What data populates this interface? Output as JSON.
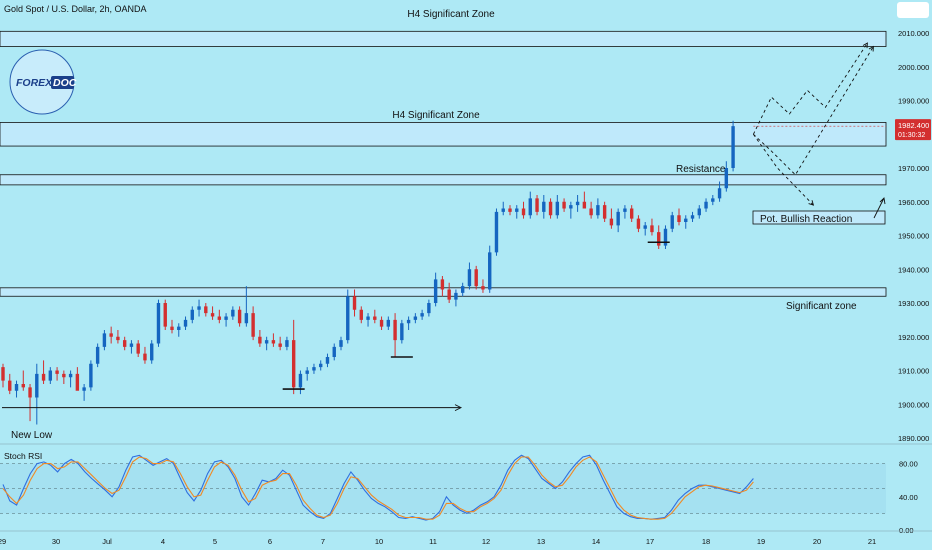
{
  "header": {
    "symbol_title": "Gold Spot / U.S. Dollar, 2h, OANDA"
  },
  "logo": {
    "text_a": "FOREX",
    "text_b": "DOC"
  },
  "colors": {
    "background": "#aee9f5",
    "bull": "#1565c0",
    "bear": "#d32f2f",
    "zone_fill": "#bfe9fb",
    "line": "#111111",
    "rsi_k": "#2f6fe0",
    "rsi_d": "#f08a24",
    "price_tag": "#d32f2f"
  },
  "annotations": {
    "h4_top": "H4 Significant Zone",
    "h4_mid": "H4 Significant Zone",
    "resistance": "Resistance",
    "bullish": "Pot. Bullish Reaction",
    "significant": "Significant zone",
    "new_low": "New Low"
  },
  "price_tag": {
    "price": "1982.400",
    "time": "01:30:32"
  },
  "chart_data": [
    {
      "type": "candlestick",
      "title": "Gold Spot / U.S. Dollar, 2h, OANDA",
      "y_ticks": [
        "2010.000",
        "2000.000",
        "1990.000",
        "1980.000",
        "1970.000",
        "1960.000",
        "1950.000",
        "1940.000",
        "1930.000",
        "1920.000",
        "1910.000",
        "1900.000",
        "1890.000"
      ],
      "ylim": [
        1890,
        2010
      ],
      "x_ticks": [
        "29",
        "30",
        "Jul",
        "4",
        "5",
        "6",
        "7",
        "10",
        "11",
        "12",
        "13",
        "14",
        "17",
        "18",
        "19",
        "20",
        "21"
      ],
      "last_price": 1982.4,
      "zones": [
        {
          "label": "H4 Significant Zone",
          "low": 2006,
          "high": 2010.5
        },
        {
          "label": "H4 Significant Zone",
          "low": 1976.5,
          "high": 1983.5
        },
        {
          "label": "Resistance",
          "low": 1965,
          "high": 1968
        },
        {
          "label": "Significant zone",
          "low": 1932,
          "high": 1934.5
        }
      ],
      "candles": [
        [
          1911,
          1912,
          1905,
          1907
        ],
        [
          1907,
          1909,
          1903,
          1904
        ],
        [
          1904,
          1907,
          1902,
          1906
        ],
        [
          1906,
          1910,
          1904,
          1905
        ],
        [
          1905,
          1906,
          1895,
          1902
        ],
        [
          1902,
          1912,
          1894,
          1909
        ],
        [
          1909,
          1913,
          1906,
          1907
        ],
        [
          1907,
          1911,
          1906,
          1910
        ],
        [
          1910,
          1911,
          1907,
          1909
        ],
        [
          1909,
          1910,
          1906,
          1908
        ],
        [
          1908,
          1910,
          1905,
          1909
        ],
        [
          1909,
          1911,
          1905,
          1904
        ],
        [
          1904,
          1906,
          1901,
          1905
        ],
        [
          1905,
          1913,
          1904,
          1912
        ],
        [
          1912,
          1918,
          1911,
          1917
        ],
        [
          1917,
          1922,
          1916,
          1921
        ],
        [
          1921,
          1923,
          1918,
          1920
        ],
        [
          1920,
          1922,
          1918,
          1919
        ],
        [
          1919,
          1920,
          1916,
          1917
        ],
        [
          1917,
          1919,
          1915,
          1918
        ],
        [
          1918,
          1919,
          1914,
          1915
        ],
        [
          1915,
          1917,
          1912,
          1913
        ],
        [
          1913,
          1919,
          1912,
          1918
        ],
        [
          1918,
          1931,
          1917,
          1930
        ],
        [
          1930,
          1931,
          1922,
          1923
        ],
        [
          1923,
          1925,
          1921,
          1922
        ],
        [
          1922,
          1924,
          1920,
          1923
        ],
        [
          1923,
          1926,
          1922,
          1925
        ],
        [
          1925,
          1929,
          1924,
          1928
        ],
        [
          1928,
          1931,
          1926,
          1929
        ],
        [
          1929,
          1930,
          1926,
          1927
        ],
        [
          1927,
          1929,
          1925,
          1926
        ],
        [
          1926,
          1928,
          1924,
          1925
        ],
        [
          1925,
          1927,
          1923,
          1926
        ],
        [
          1926,
          1929,
          1925,
          1928
        ],
        [
          1928,
          1929,
          1923,
          1924
        ],
        [
          1924,
          1935,
          1923,
          1927
        ],
        [
          1927,
          1929,
          1919,
          1920
        ],
        [
          1920,
          1922,
          1917,
          1918
        ],
        [
          1918,
          1920,
          1916,
          1919
        ],
        [
          1919,
          1921,
          1917,
          1918
        ],
        [
          1918,
          1920,
          1916,
          1917
        ],
        [
          1917,
          1920,
          1916,
          1919
        ],
        [
          1919,
          1925,
          1903,
          1905
        ],
        [
          1905,
          1910,
          1903,
          1909
        ],
        [
          1909,
          1911,
          1907,
          1910
        ],
        [
          1910,
          1912,
          1909,
          1911
        ],
        [
          1911,
          1913,
          1910,
          1912
        ],
        [
          1912,
          1915,
          1911,
          1914
        ],
        [
          1914,
          1918,
          1913,
          1917
        ],
        [
          1917,
          1920,
          1916,
          1919
        ],
        [
          1919,
          1934,
          1918,
          1932
        ],
        [
          1932,
          1934,
          1926,
          1928
        ],
        [
          1928,
          1929,
          1924,
          1925
        ],
        [
          1925,
          1927,
          1923,
          1926
        ],
        [
          1926,
          1928,
          1924,
          1925
        ],
        [
          1925,
          1926,
          1922,
          1923
        ],
        [
          1923,
          1926,
          1922,
          1925
        ],
        [
          1925,
          1927,
          1914,
          1919
        ],
        [
          1919,
          1925,
          1918,
          1924
        ],
        [
          1924,
          1926,
          1922,
          1925
        ],
        [
          1925,
          1927,
          1924,
          1926
        ],
        [
          1926,
          1928,
          1925,
          1927
        ],
        [
          1927,
          1931,
          1926,
          1930
        ],
        [
          1930,
          1939,
          1929,
          1937
        ],
        [
          1937,
          1938,
          1932,
          1934
        ],
        [
          1934,
          1936,
          1930,
          1931
        ],
        [
          1931,
          1934,
          1929,
          1933
        ],
        [
          1933,
          1936,
          1932,
          1935
        ],
        [
          1935,
          1942,
          1934,
          1940
        ],
        [
          1940,
          1941,
          1934,
          1935
        ],
        [
          1935,
          1937,
          1933,
          1934
        ],
        [
          1934,
          1947,
          1933,
          1945
        ],
        [
          1945,
          1958,
          1944,
          1957
        ],
        [
          1957,
          1960,
          1956,
          1958
        ],
        [
          1958,
          1959,
          1956,
          1957
        ],
        [
          1957,
          1959,
          1955,
          1958
        ],
        [
          1958,
          1960,
          1955,
          1956
        ],
        [
          1956,
          1963,
          1955,
          1961
        ],
        [
          1961,
          1962,
          1956,
          1957
        ],
        [
          1957,
          1962,
          1955,
          1960
        ],
        [
          1960,
          1961,
          1955,
          1956
        ],
        [
          1956,
          1962,
          1955,
          1960
        ],
        [
          1960,
          1961,
          1957,
          1958
        ],
        [
          1958,
          1960,
          1955,
          1959
        ],
        [
          1959,
          1962,
          1957,
          1960
        ],
        [
          1960,
          1963,
          1958,
          1958
        ],
        [
          1958,
          1960,
          1955,
          1956
        ],
        [
          1956,
          1961,
          1955,
          1959
        ],
        [
          1959,
          1960,
          1954,
          1955
        ],
        [
          1955,
          1958,
          1952,
          1953
        ],
        [
          1953,
          1958,
          1951,
          1957
        ],
        [
          1957,
          1959,
          1955,
          1958
        ],
        [
          1958,
          1959,
          1954,
          1955
        ],
        [
          1955,
          1956,
          1951,
          1952
        ],
        [
          1952,
          1954,
          1950,
          1953
        ],
        [
          1953,
          1955,
          1950,
          1951
        ],
        [
          1951,
          1953,
          1946,
          1947
        ],
        [
          1947,
          1953,
          1946,
          1952
        ],
        [
          1952,
          1957,
          1951,
          1956
        ],
        [
          1956,
          1958,
          1953,
          1954
        ],
        [
          1954,
          1956,
          1952,
          1955
        ],
        [
          1955,
          1957,
          1954,
          1956
        ],
        [
          1956,
          1959,
          1955,
          1958
        ],
        [
          1958,
          1961,
          1957,
          1960
        ],
        [
          1960,
          1962,
          1959,
          1961
        ],
        [
          1961,
          1966,
          1960,
          1964
        ],
        [
          1964,
          1972,
          1963,
          1970
        ],
        [
          1970,
          1984,
          1969,
          1982.4
        ]
      ],
      "projections": [
        {
          "name": "path-a",
          "points": [
            [
              1983,
              1980
            ],
            [
              1986,
              1991
            ],
            [
              1989,
              1986
            ],
            [
              1992,
              1993
            ],
            [
              1995,
              1988
            ],
            [
              2002,
              2007
            ]
          ]
        },
        {
          "name": "path-b",
          "points": [
            [
              1983,
              1980
            ],
            [
              1986,
              1975
            ],
            [
              1990,
              1968
            ],
            [
              2003,
              2006
            ]
          ]
        },
        {
          "name": "path-c",
          "points": [
            [
              1983,
              1980
            ],
            [
              1987,
              1970
            ],
            [
              1993,
              1959
            ]
          ]
        }
      ]
    },
    {
      "type": "line",
      "title": "Stoch RSI",
      "y_ticks": [
        "80.00",
        "40.00",
        "0.00"
      ],
      "ylim": [
        0,
        100
      ],
      "levels": [
        80,
        50,
        20
      ],
      "series": [
        {
          "values": [
            55,
            35,
            30,
            50,
            68,
            80,
            82,
            78,
            70,
            80,
            85,
            80,
            70,
            62,
            55,
            48,
            40,
            52,
            72,
            88,
            90,
            84,
            78,
            82,
            86,
            80,
            62,
            45,
            35,
            48,
            68,
            82,
            84,
            76,
            62,
            40,
            30,
            44,
            60,
            58,
            62,
            72,
            66,
            48,
            30,
            22,
            16,
            14,
            20,
            38,
            56,
            70,
            60,
            48,
            38,
            32,
            28,
            22,
            15,
            14,
            16,
            14,
            12,
            14,
            22,
            40,
            30,
            24,
            20,
            24,
            30,
            34,
            40,
            54,
            72,
            84,
            90,
            86,
            74,
            62,
            56,
            50,
            58,
            70,
            80,
            88,
            90,
            78,
            60,
            44,
            28,
            20,
            16,
            14,
            14,
            13,
            14,
            15,
            24,
            36,
            44,
            50,
            54,
            54,
            52,
            50,
            48,
            46,
            44,
            52,
            62
          ]
        },
        {
          "values": [
            50,
            40,
            32,
            42,
            60,
            74,
            80,
            80,
            74,
            76,
            82,
            82,
            74,
            66,
            58,
            50,
            44,
            48,
            64,
            82,
            88,
            86,
            80,
            80,
            84,
            82,
            68,
            52,
            40,
            42,
            60,
            76,
            82,
            78,
            66,
            48,
            34,
            38,
            54,
            58,
            60,
            68,
            68,
            54,
            36,
            26,
            18,
            15,
            18,
            32,
            50,
            64,
            62,
            52,
            42,
            35,
            30,
            25,
            18,
            15,
            15,
            15,
            13,
            13,
            18,
            32,
            32,
            26,
            22,
            22,
            28,
            32,
            38,
            48,
            66,
            80,
            88,
            88,
            78,
            66,
            58,
            52,
            54,
            64,
            76,
            84,
            88,
            82,
            66,
            50,
            34,
            24,
            18,
            15,
            14,
            13,
            13,
            14,
            20,
            30,
            40,
            46,
            52,
            54,
            53,
            51,
            49,
            47,
            45,
            48,
            58
          ]
        }
      ],
      "points": 111,
      "x_extent": 112
    }
  ]
}
